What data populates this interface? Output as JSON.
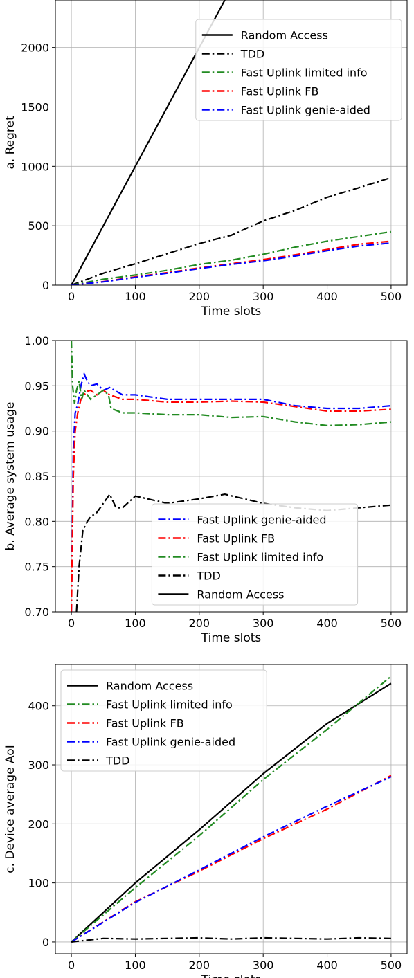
{
  "chart_data": [
    {
      "type": "line",
      "xlabel": "Time slots",
      "ylabel": "a. Regret",
      "xlim": [
        -25,
        525
      ],
      "ylim": [
        0,
        2400
      ],
      "xticks": [
        "0",
        "100",
        "200",
        "300",
        "400",
        "500"
      ],
      "yticks": [
        "0",
        "500",
        "1000",
        "1500",
        "2000"
      ],
      "grid": true,
      "legend_position": "top-right",
      "series": [
        {
          "name": "Random Access",
          "color": "#000000",
          "style": "solid",
          "x": [
            0,
            240
          ],
          "y": [
            0,
            2400
          ]
        },
        {
          "name": "TDD",
          "color": "#000000",
          "style": "dashdot",
          "x": [
            0,
            50,
            100,
            150,
            200,
            250,
            300,
            350,
            400,
            450,
            500
          ],
          "y": [
            0,
            100,
            180,
            265,
            350,
            420,
            540,
            630,
            740,
            820,
            905
          ]
        },
        {
          "name": "Fast Uplink limited info",
          "color": "#228B22",
          "style": "dashdot",
          "x": [
            0,
            50,
            100,
            150,
            200,
            250,
            300,
            350,
            400,
            450,
            500
          ],
          "y": [
            0,
            50,
            85,
            125,
            175,
            210,
            260,
            320,
            370,
            410,
            450
          ]
        },
        {
          "name": "Fast Uplink FB",
          "color": "#ff0000",
          "style": "dashdot",
          "x": [
            0,
            50,
            100,
            150,
            200,
            250,
            300,
            350,
            400,
            450,
            500
          ],
          "y": [
            0,
            30,
            70,
            105,
            145,
            180,
            215,
            255,
            300,
            345,
            370
          ]
        },
        {
          "name": "Fast Uplink genie-aided",
          "color": "#0000ff",
          "style": "dashdot",
          "x": [
            0,
            50,
            100,
            150,
            200,
            250,
            300,
            350,
            400,
            450,
            500
          ],
          "y": [
            0,
            28,
            65,
            100,
            140,
            175,
            205,
            245,
            290,
            330,
            355
          ]
        }
      ]
    },
    {
      "type": "line",
      "xlabel": "Time slots",
      "ylabel": "b. Average system usage",
      "xlim": [
        -25,
        525
      ],
      "ylim": [
        0.7,
        1.0
      ],
      "xticks": [
        "0",
        "100",
        "200",
        "300",
        "400",
        "500"
      ],
      "yticks": [
        "0.70",
        "0.75",
        "0.80",
        "0.85",
        "0.90",
        "0.95",
        "1.00"
      ],
      "grid": true,
      "legend_position": "lower-center",
      "series": [
        {
          "name": "Fast Uplink genie-aided",
          "color": "#0000ff",
          "style": "dashdot",
          "x": [
            0,
            3,
            6,
            10,
            15,
            20,
            25,
            30,
            40,
            50,
            60,
            80,
            100,
            150,
            200,
            250,
            300,
            350,
            400,
            450,
            500
          ],
          "y": [
            0.7,
            0.88,
            0.92,
            0.93,
            0.95,
            0.963,
            0.955,
            0.95,
            0.952,
            0.945,
            0.948,
            0.94,
            0.94,
            0.935,
            0.935,
            0.935,
            0.935,
            0.928,
            0.925,
            0.925,
            0.928
          ]
        },
        {
          "name": "Fast Uplink FB",
          "color": "#ff0000",
          "style": "dashdot",
          "x": [
            0,
            3,
            6,
            10,
            15,
            20,
            25,
            30,
            40,
            50,
            60,
            80,
            100,
            150,
            200,
            250,
            300,
            350,
            400,
            450,
            500
          ],
          "y": [
            0.7,
            0.85,
            0.9,
            0.92,
            0.935,
            0.94,
            0.944,
            0.945,
            0.94,
            0.945,
            0.94,
            0.935,
            0.935,
            0.932,
            0.932,
            0.933,
            0.932,
            0.927,
            0.922,
            0.922,
            0.924
          ]
        },
        {
          "name": "Fast Uplink limited info",
          "color": "#228B22",
          "style": "dashdot",
          "x": [
            0,
            2,
            5,
            8,
            12,
            16,
            20,
            25,
            30,
            40,
            50,
            58,
            62,
            80,
            100,
            150,
            200,
            250,
            300,
            350,
            400,
            450,
            500
          ],
          "y": [
            1.0,
            0.95,
            0.93,
            0.945,
            0.955,
            0.935,
            0.945,
            0.94,
            0.935,
            0.94,
            0.945,
            0.94,
            0.925,
            0.92,
            0.92,
            0.918,
            0.918,
            0.915,
            0.916,
            0.91,
            0.906,
            0.907,
            0.91
          ]
        },
        {
          "name": "TDD",
          "color": "#000000",
          "style": "dashdot",
          "x": [
            8,
            12,
            18,
            25,
            30,
            40,
            50,
            60,
            70,
            80,
            100,
            150,
            200,
            240,
            300,
            350,
            400,
            450,
            500
          ],
          "y": [
            0.7,
            0.75,
            0.79,
            0.8,
            0.805,
            0.81,
            0.82,
            0.83,
            0.815,
            0.815,
            0.828,
            0.82,
            0.825,
            0.83,
            0.82,
            0.815,
            0.812,
            0.815,
            0.818
          ]
        },
        {
          "name": "Random Access",
          "color": "#000000",
          "style": "solid",
          "x": [],
          "y": []
        }
      ]
    },
    {
      "type": "line",
      "xlabel": "Time slots",
      "ylabel": "c. Device average AoI",
      "xlim": [
        -25,
        525
      ],
      "ylim": [
        -20,
        470
      ],
      "xticks": [
        "0",
        "100",
        "200",
        "300",
        "400",
        "500"
      ],
      "yticks": [
        "0",
        "100",
        "200",
        "300",
        "400"
      ],
      "grid": true,
      "legend_position": "top-left",
      "series": [
        {
          "name": "Random Access",
          "color": "#000000",
          "style": "solid",
          "x": [
            0,
            100,
            200,
            300,
            400,
            500
          ],
          "y": [
            0,
            100,
            190,
            285,
            370,
            438
          ]
        },
        {
          "name": "Fast Uplink limited info",
          "color": "#228B22",
          "style": "dashdot",
          "x": [
            0,
            100,
            200,
            300,
            400,
            500
          ],
          "y": [
            0,
            92,
            180,
            275,
            360,
            450
          ]
        },
        {
          "name": "Fast Uplink FB",
          "color": "#ff0000",
          "style": "dashdot",
          "x": [
            0,
            100,
            200,
            300,
            400,
            500
          ],
          "y": [
            0,
            68,
            120,
            175,
            225,
            282
          ]
        },
        {
          "name": "Fast Uplink genie-aided",
          "color": "#0000ff",
          "style": "dashdot",
          "x": [
            0,
            100,
            200,
            300,
            400,
            500
          ],
          "y": [
            0,
            67,
            122,
            178,
            230,
            280
          ]
        },
        {
          "name": "TDD",
          "color": "#000000",
          "style": "dashdot",
          "x": [
            0,
            50,
            100,
            150,
            200,
            250,
            300,
            350,
            400,
            450,
            500
          ],
          "y": [
            0,
            6,
            5,
            6,
            7,
            5,
            7,
            6,
            5,
            7,
            6
          ]
        }
      ]
    }
  ]
}
